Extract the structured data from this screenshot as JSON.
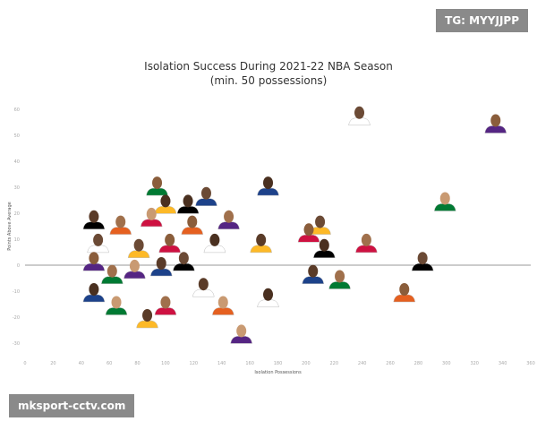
{
  "watermarks": {
    "top_right": "TG: MYYJJPP",
    "bottom_left": "mksport-cctv.com"
  },
  "chart_data": {
    "type": "scatter",
    "title": "Isolation Success During 2021-22 NBA Season",
    "subtitle": "(min. 50 possessions)",
    "xlabel": "Isolation Possessions",
    "ylabel": "Points Above Average",
    "xlim": [
      0,
      360
    ],
    "ylim": [
      -30,
      60
    ],
    "xticks": [
      0,
      20,
      40,
      60,
      80,
      100,
      120,
      140,
      160,
      180,
      200,
      220,
      240,
      260,
      280,
      300,
      320,
      340,
      360
    ],
    "yticks": [
      60,
      50,
      40,
      30,
      20,
      10,
      0,
      -10,
      -20,
      -30
    ],
    "grid": false,
    "marker": "player-headshot",
    "points": [
      {
        "x": 238,
        "y": 58
      },
      {
        "x": 335,
        "y": 55
      },
      {
        "x": 173,
        "y": 31
      },
      {
        "x": 299,
        "y": 25
      },
      {
        "x": 168,
        "y": 9
      },
      {
        "x": 243,
        "y": 9
      },
      {
        "x": 283,
        "y": 2
      },
      {
        "x": 270,
        "y": -10
      },
      {
        "x": 173,
        "y": -12
      },
      {
        "x": 154,
        "y": -26
      },
      {
        "x": 205,
        "y": -3
      },
      {
        "x": 224,
        "y": -5
      },
      {
        "x": 210,
        "y": 16
      },
      {
        "x": 202,
        "y": 13
      },
      {
        "x": 213,
        "y": 7
      },
      {
        "x": 141,
        "y": -15
      },
      {
        "x": 127,
        "y": -8
      },
      {
        "x": 145,
        "y": 18
      },
      {
        "x": 129,
        "y": 27
      },
      {
        "x": 94,
        "y": 31
      },
      {
        "x": 100,
        "y": 24
      },
      {
        "x": 90,
        "y": 19
      },
      {
        "x": 49,
        "y": 18
      },
      {
        "x": 68,
        "y": 16
      },
      {
        "x": 52,
        "y": 9
      },
      {
        "x": 49,
        "y": 2
      },
      {
        "x": 49,
        "y": -10
      },
      {
        "x": 65,
        "y": -15
      },
      {
        "x": 87,
        "y": -20
      },
      {
        "x": 100,
        "y": -15
      },
      {
        "x": 113,
        "y": 2
      },
      {
        "x": 119,
        "y": 16
      },
      {
        "x": 135,
        "y": 9
      },
      {
        "x": 78,
        "y": -1
      },
      {
        "x": 97,
        "y": 0
      },
      {
        "x": 62,
        "y": -3
      },
      {
        "x": 81,
        "y": 7
      },
      {
        "x": 103,
        "y": 9
      },
      {
        "x": 116,
        "y": 24
      }
    ]
  }
}
